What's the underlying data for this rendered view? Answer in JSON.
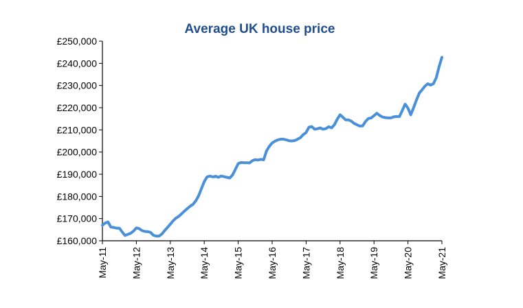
{
  "chart_data": {
    "type": "line",
    "title": "Average UK house price",
    "xlabel": "",
    "ylabel": "",
    "ylim": [
      160000,
      250000
    ],
    "grid": false,
    "legend": "none",
    "x_tick_labels": [
      "May-11",
      "May-12",
      "May-13",
      "May-14",
      "May-15",
      "May-16",
      "May-17",
      "May-18",
      "May-19",
      "May-20",
      "May-21"
    ],
    "y_tick_labels": [
      "£160,000",
      "£170,000",
      "£180,000",
      "£190,000",
      "£200,000",
      "£210,000",
      "£220,000",
      "£230,000",
      "£240,000",
      "£250,000"
    ],
    "y_ticks": [
      160000,
      170000,
      180000,
      190000,
      200000,
      210000,
      220000,
      230000,
      240000,
      250000
    ],
    "line_color": "#4a90d9",
    "title_color": "#1f4e8c",
    "series": [
      {
        "x": [
          "2011-05",
          "2011-06",
          "2011-07",
          "2011-08",
          "2011-09",
          "2011-10",
          "2011-11",
          "2011-12",
          "2012-01",
          "2012-02",
          "2012-03",
          "2012-04",
          "2012-05",
          "2012-06",
          "2012-07",
          "2012-08",
          "2012-09",
          "2012-10",
          "2012-11",
          "2012-12",
          "2013-01",
          "2013-02",
          "2013-03",
          "2013-04",
          "2013-05",
          "2013-06",
          "2013-07",
          "2013-08",
          "2013-09",
          "2013-10",
          "2013-11",
          "2013-12",
          "2014-01",
          "2014-02",
          "2014-03",
          "2014-04",
          "2014-05",
          "2014-06",
          "2014-07",
          "2014-08",
          "2014-09",
          "2014-10",
          "2014-11",
          "2014-12",
          "2015-01",
          "2015-02",
          "2015-03",
          "2015-04",
          "2015-05",
          "2015-06",
          "2015-07",
          "2015-08",
          "2015-09",
          "2015-10",
          "2015-11",
          "2015-12",
          "2016-01",
          "2016-02",
          "2016-03",
          "2016-04",
          "2016-05",
          "2016-06",
          "2016-07",
          "2016-08",
          "2016-09",
          "2016-10",
          "2016-11",
          "2016-12",
          "2017-01",
          "2017-02",
          "2017-03",
          "2017-04",
          "2017-05",
          "2017-06",
          "2017-07",
          "2017-08",
          "2017-09",
          "2017-10",
          "2017-11",
          "2017-12",
          "2018-01",
          "2018-02",
          "2018-03",
          "2018-04",
          "2018-05",
          "2018-06",
          "2018-07",
          "2018-08",
          "2018-09",
          "2018-10",
          "2018-11",
          "2018-12",
          "2019-01",
          "2019-02",
          "2019-03",
          "2019-04",
          "2019-05",
          "2019-06",
          "2019-07",
          "2019-08",
          "2019-09",
          "2019-10",
          "2019-11",
          "2019-12",
          "2020-01",
          "2020-02",
          "2020-03",
          "2020-04",
          "2020-05",
          "2020-06",
          "2020-07",
          "2020-08",
          "2020-09",
          "2020-10",
          "2020-11",
          "2020-12",
          "2021-01",
          "2021-02",
          "2021-03",
          "2021-04",
          "2021-05"
        ],
        "values": [
          167000,
          168000,
          168500,
          166200,
          166000,
          165700,
          165700,
          164000,
          162400,
          162900,
          163400,
          164400,
          165800,
          165500,
          164600,
          164200,
          164100,
          163800,
          162500,
          162100,
          162100,
          163000,
          164600,
          166000,
          167500,
          169000,
          170200,
          171000,
          172200,
          173400,
          174500,
          175600,
          176400,
          178000,
          180300,
          183500,
          186700,
          188800,
          189200,
          188800,
          189100,
          188600,
          189200,
          188900,
          188600,
          188300,
          189700,
          192200,
          194800,
          195300,
          195200,
          195200,
          195100,
          196100,
          196600,
          196400,
          196700,
          196500,
          200500,
          202600,
          204100,
          204900,
          205500,
          205800,
          205800,
          205500,
          205100,
          205000,
          205200,
          205800,
          206500,
          207900,
          208800,
          211200,
          211500,
          210300,
          210500,
          210900,
          210300,
          210600,
          211400,
          210900,
          212300,
          214800,
          216800,
          215700,
          214500,
          214500,
          213900,
          212900,
          212300,
          211700,
          211800,
          213800,
          215100,
          215400,
          216400,
          217500,
          216500,
          215800,
          215500,
          215400,
          215400,
          215900,
          216000,
          216000,
          218800,
          221600,
          219800,
          216800,
          220000,
          223500,
          226600,
          228100,
          229700,
          230800,
          230200,
          230800,
          233500,
          238500,
          242700
        ]
      }
    ]
  }
}
